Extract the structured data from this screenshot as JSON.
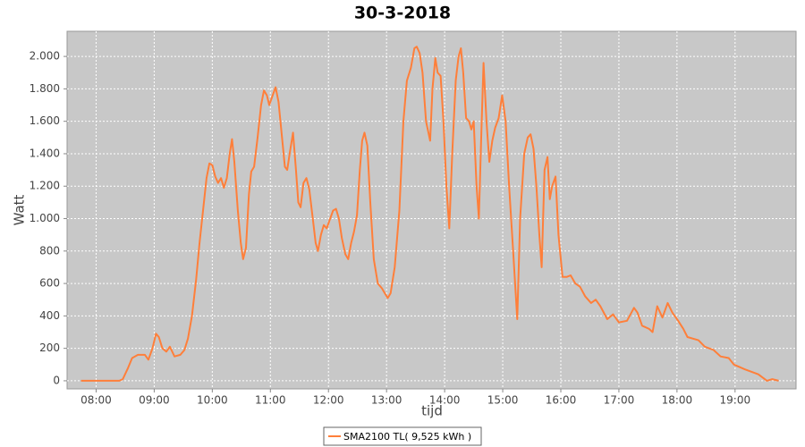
{
  "chart_data": {
    "type": "line",
    "title": "30-3-2018",
    "xlabel": "tijd",
    "ylabel": "Watt",
    "background": "#c8c8c8",
    "grid": true,
    "legend": "bottom",
    "xlim": [
      7.5,
      20.05
    ],
    "ylim": [
      -50,
      2155
    ],
    "xticks": [
      {
        "value": 8,
        "label": "08:00"
      },
      {
        "value": 9,
        "label": "09:00"
      },
      {
        "value": 10,
        "label": "10:00"
      },
      {
        "value": 11,
        "label": "11:00"
      },
      {
        "value": 12,
        "label": "12:00"
      },
      {
        "value": 13,
        "label": "13:00"
      },
      {
        "value": 14,
        "label": "14:00"
      },
      {
        "value": 15,
        "label": "15:00"
      },
      {
        "value": 16,
        "label": "16:00"
      },
      {
        "value": 17,
        "label": "17:00"
      },
      {
        "value": 18,
        "label": "18:00"
      },
      {
        "value": 19,
        "label": "19:00"
      }
    ],
    "yticks": [
      0,
      200,
      400,
      600,
      800,
      {
        "value": 1000,
        "label": "1.000"
      },
      {
        "value": 1200,
        "label": "1.200"
      },
      {
        "value": 1400,
        "label": "1.400"
      },
      {
        "value": 1600,
        "label": "1.600"
      },
      {
        "value": 1800,
        "label": "1.800"
      },
      {
        "value": 2000,
        "label": "2.000"
      }
    ],
    "x": [
      7.74,
      8.4,
      8.46,
      8.55,
      8.62,
      8.72,
      8.84,
      8.9,
      8.97,
      9.03,
      9.08,
      9.14,
      9.21,
      9.27,
      9.35,
      9.45,
      9.52,
      9.58,
      9.65,
      9.72,
      9.78,
      9.84,
      9.9,
      9.95,
      10.0,
      10.05,
      10.1,
      10.15,
      10.2,
      10.25,
      10.3,
      10.34,
      10.38,
      10.44,
      10.49,
      10.53,
      10.58,
      10.63,
      10.67,
      10.72,
      10.78,
      10.84,
      10.89,
      10.94,
      10.98,
      11.03,
      11.09,
      11.14,
      11.2,
      11.25,
      11.29,
      11.34,
      11.39,
      11.44,
      11.48,
      11.52,
      11.57,
      11.62,
      11.67,
      11.73,
      11.78,
      11.82,
      11.87,
      11.92,
      11.97,
      12.02,
      12.08,
      12.13,
      12.18,
      12.23,
      12.29,
      12.34,
      12.39,
      12.44,
      12.49,
      12.54,
      12.58,
      12.62,
      12.67,
      12.72,
      12.78,
      12.85,
      12.92,
      12.97,
      13.02,
      13.07,
      13.14,
      13.22,
      13.29,
      13.35,
      13.42,
      13.48,
      13.52,
      13.57,
      13.62,
      13.68,
      13.75,
      13.79,
      13.84,
      13.88,
      13.93,
      13.98,
      14.03,
      14.08,
      14.13,
      14.19,
      14.24,
      14.28,
      14.32,
      14.37,
      14.42,
      14.46,
      14.5,
      14.55,
      14.59,
      14.63,
      14.67,
      14.72,
      14.77,
      14.82,
      14.87,
      14.93,
      14.99,
      15.05,
      15.11,
      15.18,
      15.25,
      15.3,
      15.37,
      15.43,
      15.48,
      15.53,
      15.58,
      15.63,
      15.67,
      15.72,
      15.77,
      15.81,
      15.85,
      15.91,
      15.96,
      16.03,
      16.1,
      16.17,
      16.25,
      16.33,
      16.42,
      16.52,
      16.6,
      16.68,
      16.8,
      16.9,
      17.0,
      17.14,
      17.26,
      17.32,
      17.4,
      17.52,
      17.58,
      17.66,
      17.75,
      17.84,
      17.92,
      18.02,
      18.11,
      18.18,
      18.37,
      18.48,
      18.63,
      18.75,
      18.89,
      18.98,
      19.17,
      19.4,
      19.55,
      19.64,
      19.75
    ],
    "series": [
      {
        "name": "SMA2100 TL( 9,525 kWh )",
        "color": "#ff7f3a",
        "values": [
          0,
          0,
          10,
          80,
          140,
          160,
          160,
          130,
          200,
          290,
          270,
          200,
          180,
          210,
          150,
          160,
          190,
          260,
          400,
          620,
          850,
          1050,
          1250,
          1340,
          1330,
          1260,
          1220,
          1250,
          1190,
          1250,
          1400,
          1490,
          1350,
          1050,
          850,
          750,
          820,
          1150,
          1290,
          1320,
          1500,
          1700,
          1790,
          1760,
          1700,
          1750,
          1810,
          1720,
          1500,
          1320,
          1300,
          1420,
          1530,
          1300,
          1100,
          1070,
          1220,
          1250,
          1180,
          1000,
          850,
          800,
          900,
          960,
          940,
          990,
          1050,
          1060,
          1000,
          880,
          780,
          750,
          850,
          920,
          1020,
          1300,
          1480,
          1530,
          1450,
          1100,
          750,
          600,
          570,
          540,
          510,
          540,
          700,
          1050,
          1600,
          1850,
          1930,
          2050,
          2060,
          2020,
          1900,
          1600,
          1480,
          1800,
          1990,
          1900,
          1880,
          1600,
          1200,
          940,
          1400,
          1850,
          2000,
          2050,
          1900,
          1620,
          1600,
          1550,
          1600,
          1200,
          1000,
          1500,
          1960,
          1600,
          1350,
          1480,
          1560,
          1620,
          1760,
          1600,
          1200,
          800,
          380,
          1000,
          1400,
          1500,
          1520,
          1430,
          1200,
          900,
          700,
          1300,
          1380,
          1120,
          1200,
          1260,
          900,
          640,
          640,
          650,
          600,
          580,
          520,
          480,
          500,
          460,
          380,
          410,
          360,
          370,
          450,
          420,
          340,
          320,
          300,
          460,
          390,
          480,
          420,
          370,
          320,
          270,
          250,
          210,
          190,
          150,
          140,
          100,
          70,
          40,
          0,
          10,
          0
        ]
      }
    ]
  }
}
